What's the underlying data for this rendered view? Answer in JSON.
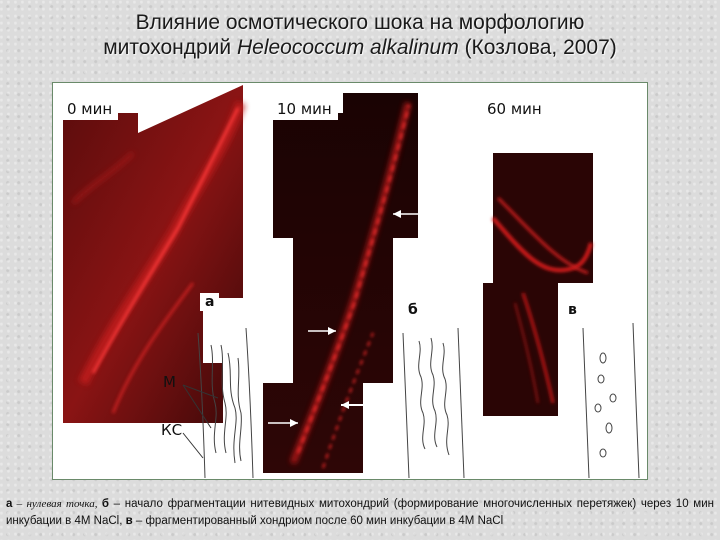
{
  "title": {
    "line1": "Влияние осмотического шока на морфологию",
    "line2_prefix": "митохондрий ",
    "species": "Heleococcum alkalinum",
    "line2_suffix": " (Козлова, 2007)"
  },
  "panels": {
    "time_labels": [
      "0 мин",
      "10 мин",
      "60 мин"
    ],
    "letters": [
      "а",
      "б",
      "в"
    ]
  },
  "drawing_labels": {
    "m": "М",
    "ks": "КС"
  },
  "caption": {
    "a_letter": "а",
    "a_text": " – нулевая точка, ",
    "b_letter": "б",
    "b_text": " – начало фрагментации нитевидных митохондрий (формирование многочисленных перетяжек) через 10 мин инкубации в 4М NaCl, ",
    "v_letter": "в",
    "v_text": " – фрагментированный хондриом после 60 мин инкубации в 4М NaCl"
  },
  "colors": {
    "fluorescence": "#e01818",
    "background_dark": "#2a0606",
    "frame_border": "#6a8a6a"
  }
}
